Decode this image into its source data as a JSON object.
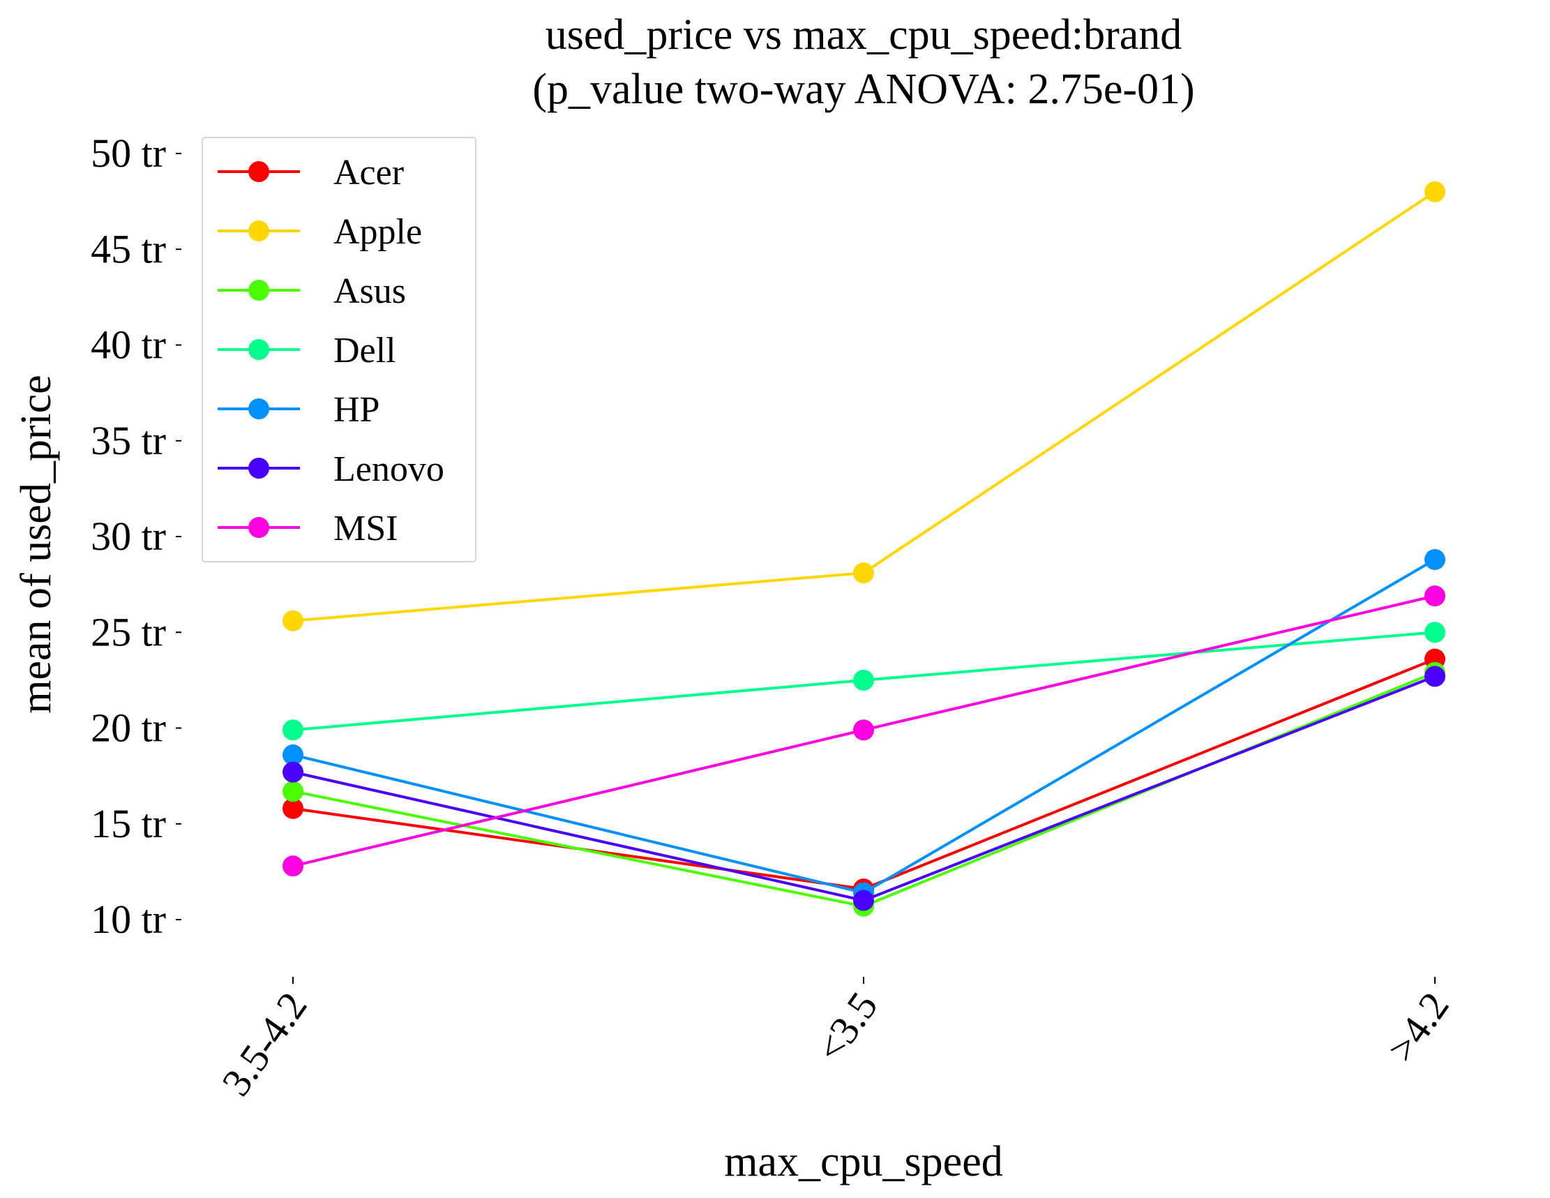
{
  "chart_data": {
    "type": "line",
    "title": "used_price vs max_cpu_speed:brand",
    "subtitle": "(p_value two-way ANOVA: 2.75e-01)",
    "xlabel": "max_cpu_speed",
    "ylabel": "mean of used_price",
    "categories": [
      "3.5-4.2",
      "<3.5",
      ">4.2"
    ],
    "yticks": [
      10,
      15,
      20,
      25,
      30,
      35,
      40,
      45,
      50
    ],
    "ytick_labels": [
      "10 tr",
      "15 tr",
      "20 tr",
      "25 tr",
      "30 tr",
      "35 tr",
      "40 tr",
      "45 tr",
      "50 tr"
    ],
    "ylim": [
      7,
      51
    ],
    "grid": false,
    "legend_position": "top-left",
    "series": [
      {
        "name": "Acer",
        "color": "#ff0000",
        "values": [
          15.8,
          11.6,
          23.6
        ]
      },
      {
        "name": "Apple",
        "color": "#ffd700",
        "values": [
          25.6,
          28.1,
          48.0
        ]
      },
      {
        "name": "Asus",
        "color": "#4cff00",
        "values": [
          16.7,
          10.7,
          22.9
        ]
      },
      {
        "name": "Dell",
        "color": "#00ff8c",
        "values": [
          19.9,
          22.5,
          25.0
        ]
      },
      {
        "name": "HP",
        "color": "#0090ff",
        "values": [
          18.6,
          11.4,
          28.8
        ]
      },
      {
        "name": "Lenovo",
        "color": "#4800ff",
        "values": [
          17.7,
          11.0,
          22.7
        ]
      },
      {
        "name": "MSI",
        "color": "#ff00e0",
        "values": [
          12.8,
          19.9,
          26.9
        ]
      }
    ]
  }
}
